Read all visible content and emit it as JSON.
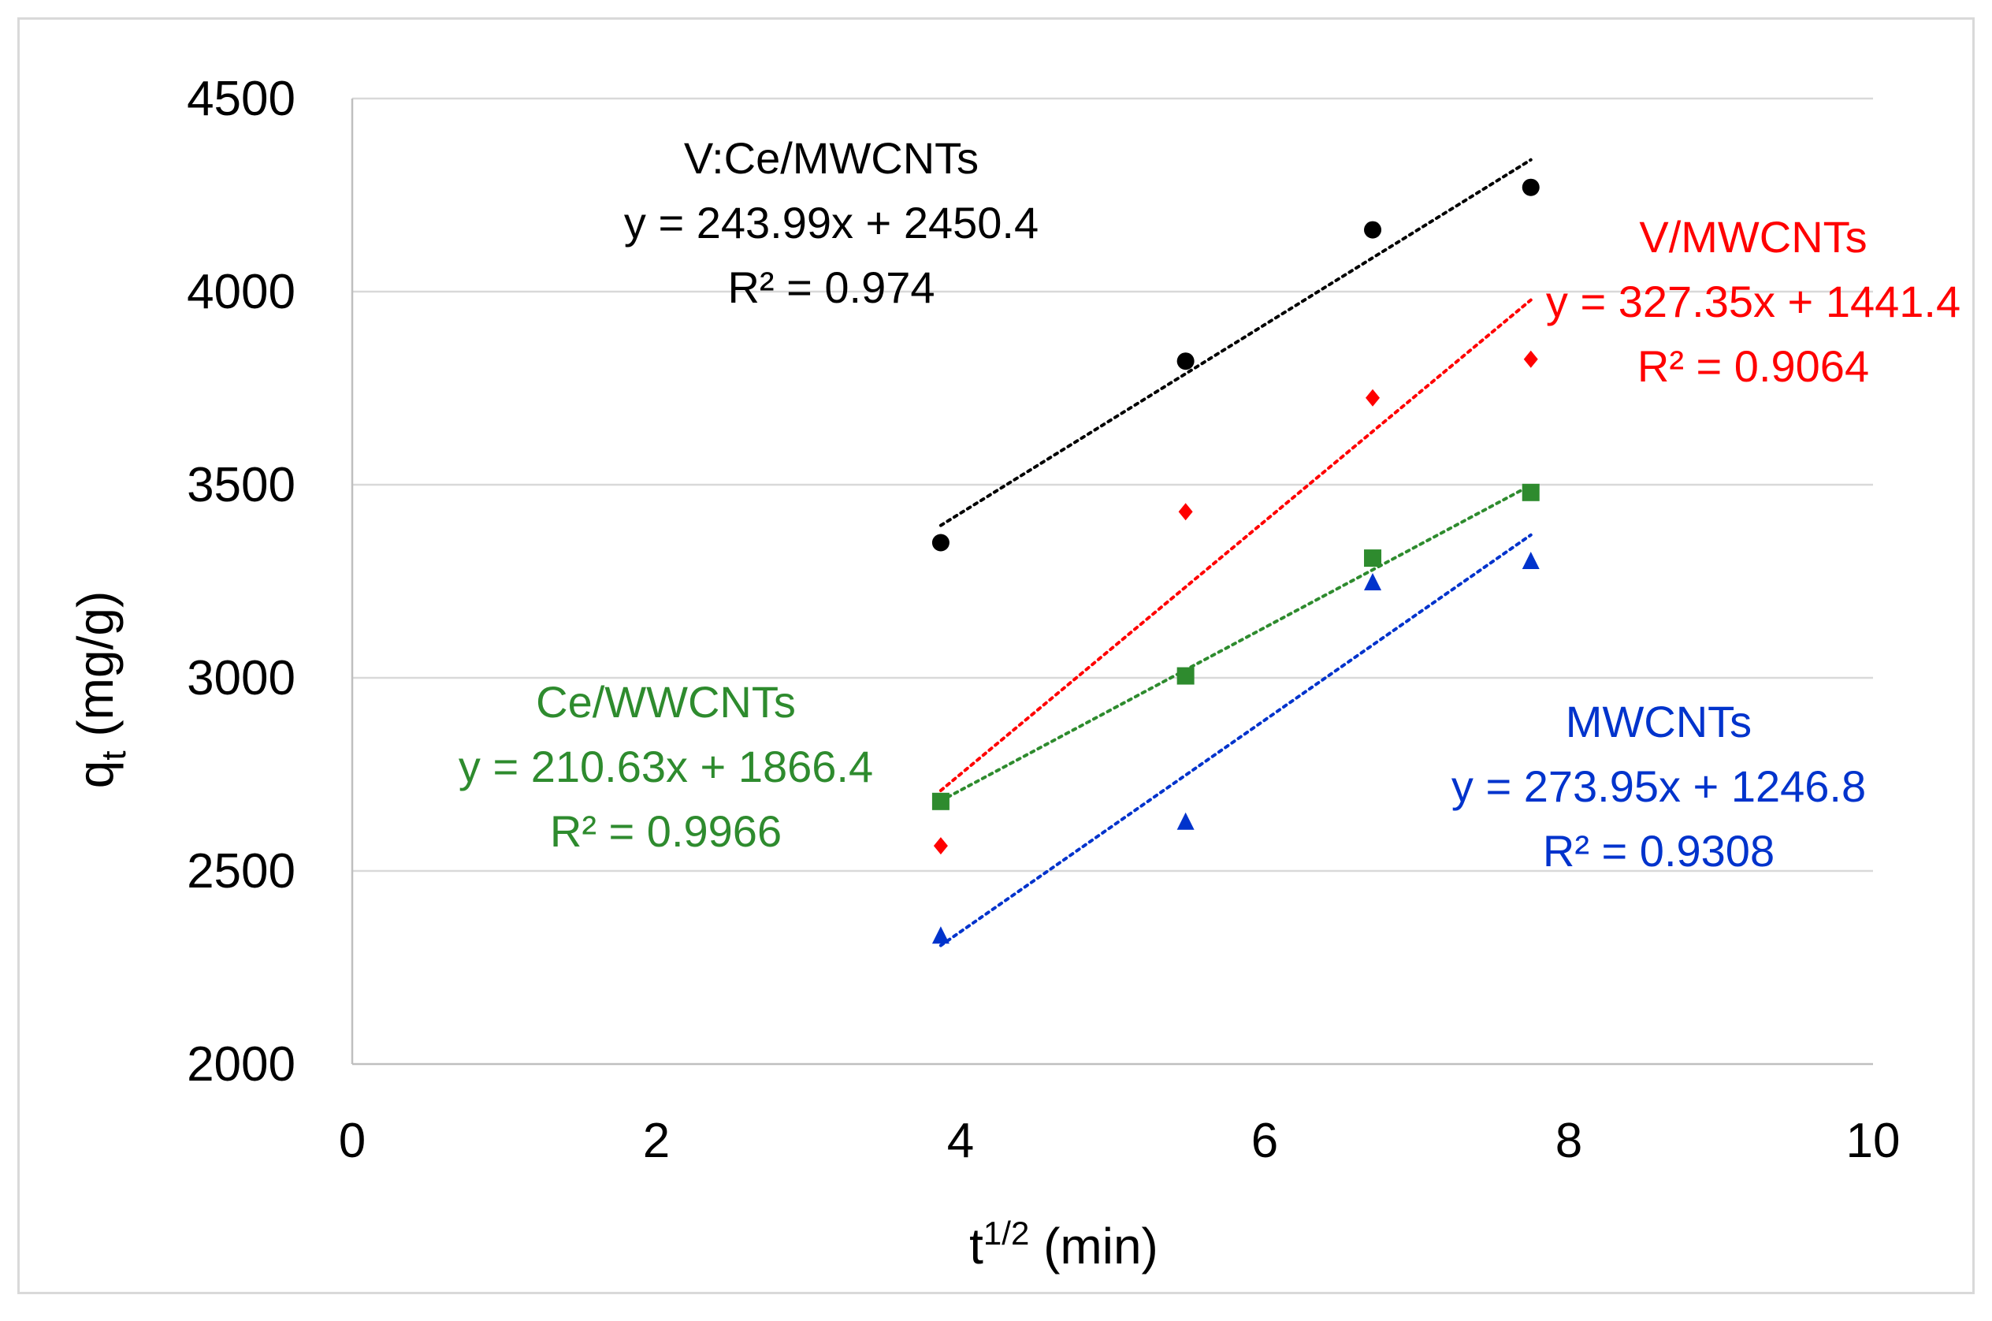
{
  "chart_data": {
    "type": "scatter",
    "title": "",
    "xlabel": {
      "base": "t",
      "sup": "1/2",
      "rest": " (min)"
    },
    "ylabel": {
      "base": "q",
      "sub": "t",
      "rest": " (mg/g)"
    },
    "xlim": [
      0,
      10
    ],
    "ylim": [
      2000,
      4500
    ],
    "xticks": [
      0,
      2,
      4,
      6,
      8,
      10
    ],
    "yticks": [
      2000,
      2500,
      3000,
      3500,
      4000,
      4500
    ],
    "grid": "horizontal",
    "legend": "none",
    "series": [
      {
        "name": "V:Ce/MWCNTs",
        "color": "#000000",
        "marker": "circle",
        "x": [
          3.87,
          5.48,
          6.71,
          7.75
        ],
        "y": [
          3350,
          3820,
          4160,
          4270
        ],
        "trendline": {
          "slope": 243.99,
          "intercept": 2450.4,
          "x_range": [
            3.87,
            7.75
          ]
        },
        "equation": "y = 243.99x + 2450.4",
        "r2": "R² = 0.974"
      },
      {
        "name": "V/MWCNTs",
        "color": "#ff0000",
        "marker": "diamond",
        "x": [
          3.87,
          5.48,
          6.71,
          7.75
        ],
        "y": [
          2565,
          3430,
          3725,
          3825
        ],
        "trendline": {
          "slope": 327.35,
          "intercept": 1441.4,
          "x_range": [
            3.87,
            7.75
          ]
        },
        "equation": "y = 327.35x + 1441.4",
        "r2": "R² = 0.9064"
      },
      {
        "name": "Ce/WWCNTs",
        "color": "#2e8b2e",
        "marker": "square",
        "x": [
          3.87,
          5.48,
          6.71,
          7.75
        ],
        "y": [
          2680,
          3005,
          3310,
          3480
        ],
        "trendline": {
          "slope": 210.63,
          "intercept": 1866.4,
          "x_range": [
            3.87,
            7.75
          ]
        },
        "equation": "y = 210.63x + 1866.4",
        "r2": "R² = 0.9966"
      },
      {
        "name": "MWCNTs",
        "color": "#0033cc",
        "marker": "triangle",
        "x": [
          3.87,
          5.48,
          6.71,
          7.75
        ],
        "y": [
          2330,
          2625,
          3245,
          3300
        ],
        "trendline": {
          "slope": 273.95,
          "intercept": 1246.8,
          "x_range": [
            3.87,
            7.75
          ]
        },
        "equation": "y = 273.95x + 1246.8",
        "r2": "R² = 0.9308"
      }
    ]
  }
}
